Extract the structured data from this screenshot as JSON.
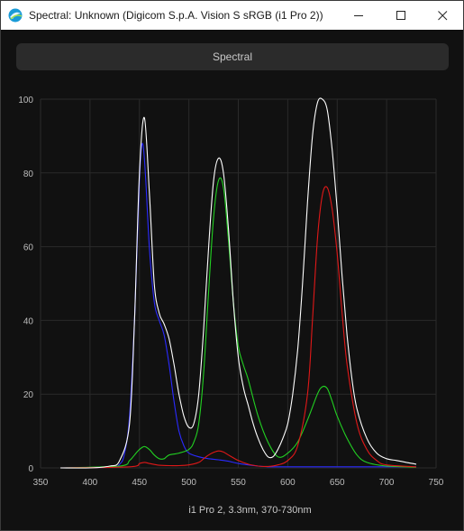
{
  "window": {
    "title": "Spectral: Unknown (Digicom S.p.A. Vision S sRGB (i1 Pro 2))",
    "controls": {
      "minimize": "—",
      "maximize": "☐",
      "close": "✕"
    }
  },
  "toolbar": {
    "spectral_label": "Spectral"
  },
  "colors": {
    "background": "#111111",
    "grid": "#2a2a2a",
    "white": "#ffffff",
    "red": "#e01818",
    "green": "#22d022",
    "blue": "#2a2aff"
  },
  "chart_data": {
    "type": "line",
    "xlabel": "i1 Pro 2, 3.3nm, 370-730nm",
    "ylabel": "",
    "xlim": [
      350,
      750
    ],
    "ylim": [
      0,
      100
    ],
    "xticks": [
      350,
      400,
      450,
      500,
      550,
      600,
      650,
      700,
      750
    ],
    "yticks": [
      0,
      20,
      40,
      60,
      80,
      100
    ],
    "grid": true,
    "series": [
      {
        "color": "white",
        "x": [
          370,
          400,
          420,
          430,
          440,
          445,
          450,
          455,
          460,
          465,
          470,
          475,
          480,
          485,
          490,
          495,
          500,
          505,
          510,
          515,
          520,
          525,
          530,
          535,
          540,
          545,
          550,
          555,
          560,
          565,
          570,
          575,
          580,
          585,
          590,
          595,
          600,
          605,
          610,
          615,
          620,
          625,
          630,
          635,
          640,
          645,
          650,
          655,
          660,
          665,
          670,
          680,
          690,
          700,
          710,
          720,
          730
        ],
        "y": [
          0,
          0,
          0.5,
          2,
          12,
          40,
          80,
          95,
          75,
          50,
          42,
          39,
          35,
          28,
          20,
          14,
          11,
          12,
          20,
          38,
          60,
          78,
          84,
          80,
          65,
          45,
          30,
          22,
          17,
          12,
          8,
          5,
          3,
          3,
          5,
          8,
          12,
          20,
          32,
          50,
          72,
          90,
          99,
          100,
          97,
          86,
          70,
          52,
          36,
          24,
          16,
          8,
          4,
          2.5,
          2,
          1.5,
          1
        ]
      },
      {
        "color": "red",
        "x": [
          370,
          440,
          450,
          455,
          460,
          470,
          480,
          490,
          500,
          510,
          515,
          520,
          525,
          530,
          535,
          540,
          550,
          560,
          570,
          580,
          590,
          600,
          610,
          620,
          625,
          630,
          635,
          640,
          645,
          650,
          655,
          660,
          670,
          680,
          690,
          700,
          730
        ],
        "y": [
          0,
          0.3,
          1.2,
          1.5,
          1.2,
          0.7,
          0.6,
          0.6,
          0.8,
          1.5,
          2.5,
          3.5,
          4.2,
          4.6,
          4.3,
          3.5,
          2,
          1,
          0.5,
          0.4,
          0.8,
          2,
          6,
          20,
          40,
          62,
          74,
          76,
          70,
          58,
          42,
          28,
          12,
          5,
          2,
          0.8,
          0.3
        ]
      },
      {
        "color": "green",
        "x": [
          370,
          430,
          440,
          445,
          450,
          455,
          460,
          465,
          470,
          475,
          480,
          490,
          500,
          505,
          510,
          515,
          520,
          525,
          530,
          535,
          540,
          545,
          550,
          555,
          560,
          570,
          580,
          590,
          600,
          610,
          620,
          630,
          635,
          640,
          645,
          650,
          660,
          670,
          680,
          700,
          730
        ],
        "y": [
          0,
          0.5,
          2,
          3.5,
          5,
          5.8,
          5,
          3.5,
          2.5,
          2.5,
          3.5,
          4,
          5,
          7,
          12,
          26,
          48,
          68,
          78,
          76,
          62,
          45,
          33,
          28,
          24,
          14,
          7,
          3,
          4,
          7,
          13,
          20,
          22,
          21.5,
          18,
          14,
          8,
          3.5,
          1.5,
          0.5,
          0.2
        ]
      },
      {
        "color": "blue",
        "x": [
          370,
          420,
          430,
          435,
          440,
          445,
          450,
          453,
          456,
          460,
          465,
          470,
          475,
          480,
          485,
          490,
          495,
          500,
          510,
          520,
          530,
          540,
          550,
          560,
          570,
          580,
          590,
          600,
          650,
          700,
          730
        ],
        "y": [
          0,
          0.2,
          1,
          4,
          14,
          40,
          78,
          88,
          80,
          60,
          45,
          40,
          36,
          28,
          18,
          10,
          6,
          4,
          3,
          2.5,
          2.2,
          1.8,
          1.2,
          0.8,
          0.5,
          0.3,
          0.3,
          0.3,
          0.3,
          0.3,
          0.3
        ]
      }
    ]
  }
}
